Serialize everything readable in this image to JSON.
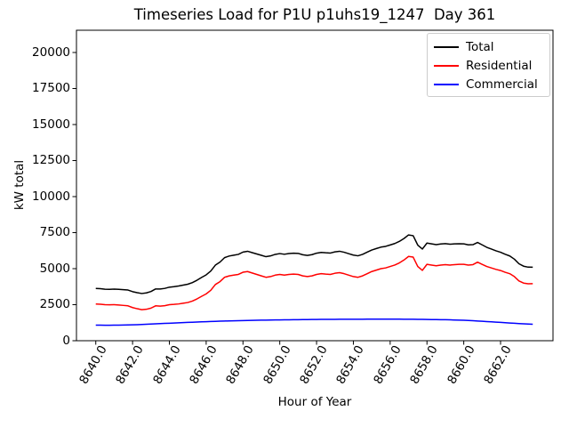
{
  "chart_data": {
    "type": "line",
    "title": "Timeseries Load for P1U p1uhs19_1247  Day 361",
    "xlabel": "Hour of Year",
    "ylabel": "kW total",
    "grid": false,
    "legend_position": "upper right",
    "xlim": [
      8638.95,
      8664.85
    ],
    "ylim": [
      0,
      21543
    ],
    "xticks": {
      "values": [
        8640,
        8642,
        8644,
        8646,
        8648,
        8650,
        8652,
        8654,
        8656,
        8658,
        8660,
        8662
      ],
      "labels": [
        "8640.0",
        "8642.0",
        "8644.0",
        "8646.0",
        "8648.0",
        "8650.0",
        "8652.0",
        "8654.0",
        "8656.0",
        "8658.0",
        "8660.0",
        "8662.0"
      ]
    },
    "yticks": {
      "values": [
        0,
        2500,
        5000,
        7500,
        10000,
        12500,
        15000,
        17500,
        20000
      ],
      "labels": [
        "0",
        "2500",
        "5000",
        "7500",
        "10000",
        "12500",
        "15000",
        "17500",
        "20000"
      ]
    },
    "x": [
      8640.0,
      8640.25,
      8640.5,
      8640.75,
      8641.0,
      8641.25,
      8641.5,
      8641.75,
      8642.0,
      8642.25,
      8642.5,
      8642.75,
      8643.0,
      8643.25,
      8643.5,
      8643.75,
      8644.0,
      8644.25,
      8644.5,
      8644.75,
      8645.0,
      8645.25,
      8645.5,
      8645.75,
      8646.0,
      8646.25,
      8646.5,
      8646.75,
      8647.0,
      8647.25,
      8647.5,
      8647.75,
      8648.0,
      8648.25,
      8648.5,
      8648.75,
      8649.0,
      8649.25,
      8649.5,
      8649.75,
      8650.0,
      8650.25,
      8650.5,
      8650.75,
      8651.0,
      8651.25,
      8651.5,
      8651.75,
      8652.0,
      8652.25,
      8652.5,
      8652.75,
      8653.0,
      8653.25,
      8653.5,
      8653.75,
      8654.0,
      8654.25,
      8654.5,
      8654.75,
      8655.0,
      8655.25,
      8655.5,
      8655.75,
      8656.0,
      8656.25,
      8656.5,
      8656.75,
      8657.0,
      8657.25,
      8657.5,
      8657.75,
      8658.0,
      8658.25,
      8658.5,
      8658.75,
      8659.0,
      8659.25,
      8659.5,
      8659.75,
      8660.0,
      8660.25,
      8660.5,
      8660.75,
      8661.0,
      8661.25,
      8661.5,
      8661.75,
      8662.0,
      8662.25,
      8662.5,
      8662.75,
      8663.0,
      8663.25,
      8663.5,
      8663.75
    ],
    "series": [
      {
        "name": "Total",
        "color": "#000000",
        "values": [
          3630,
          3608,
          3575,
          3565,
          3578,
          3562,
          3538,
          3515,
          3405,
          3335,
          3275,
          3320,
          3415,
          3590,
          3585,
          3630,
          3715,
          3750,
          3795,
          3858,
          3920,
          4033,
          4195,
          4388,
          4570,
          4832,
          5243,
          5454,
          5765,
          5875,
          5934,
          5992,
          6150,
          6207,
          6113,
          6019,
          5925,
          5830,
          5885,
          5990,
          6045,
          5999,
          6052,
          6076,
          6060,
          5964,
          5918,
          5971,
          6075,
          6128,
          6100,
          6083,
          6165,
          6207,
          6138,
          6039,
          5940,
          5891,
          5992,
          6143,
          6294,
          6395,
          6495,
          6545,
          6645,
          6744,
          6893,
          7091,
          7340,
          7288,
          6635,
          6360,
          6775,
          6720,
          6665,
          6710,
          6735,
          6697,
          6718,
          6729,
          6720,
          6653,
          6665,
          6818,
          6650,
          6480,
          6360,
          6240,
          6140,
          6000,
          5880,
          5660,
          5340,
          5172,
          5105,
          5100
        ]
      },
      {
        "name": "Residential",
        "color": "#ff0000",
        "values": [
          2550,
          2530,
          2500,
          2490,
          2500,
          2480,
          2450,
          2420,
          2300,
          2220,
          2150,
          2180,
          2260,
          2420,
          2400,
          2430,
          2500,
          2520,
          2550,
          2600,
          2650,
          2750,
          2900,
          3080,
          3250,
          3500,
          3900,
          4100,
          4400,
          4500,
          4550,
          4600,
          4750,
          4800,
          4700,
          4600,
          4500,
          4400,
          4450,
          4550,
          4600,
          4550,
          4600,
          4620,
          4600,
          4500,
          4450,
          4500,
          4600,
          4650,
          4620,
          4600,
          4680,
          4720,
          4650,
          4550,
          4450,
          4400,
          4500,
          4650,
          4800,
          4900,
          5000,
          5050,
          5150,
          5250,
          5400,
          5600,
          5850,
          5800,
          5150,
          4880,
          5300,
          5250,
          5200,
          5250,
          5280,
          5250,
          5280,
          5300,
          5300,
          5250,
          5280,
          5450,
          5300,
          5150,
          5050,
          4950,
          4870,
          4750,
          4650,
          4450,
          4150,
          4000,
          3950,
          3960
        ]
      },
      {
        "name": "Commercial",
        "color": "#0000ff",
        "values": [
          1080,
          1078,
          1075,
          1075,
          1078,
          1082,
          1088,
          1095,
          1105,
          1115,
          1125,
          1140,
          1155,
          1170,
          1185,
          1200,
          1215,
          1230,
          1245,
          1258,
          1270,
          1283,
          1295,
          1308,
          1320,
          1332,
          1343,
          1354,
          1365,
          1375,
          1384,
          1392,
          1400,
          1407,
          1413,
          1419,
          1425,
          1430,
          1435,
          1440,
          1445,
          1449,
          1452,
          1456,
          1460,
          1464,
          1468,
          1471,
          1475,
          1478,
          1480,
          1483,
          1485,
          1487,
          1488,
          1489,
          1490,
          1491,
          1492,
          1493,
          1494,
          1495,
          1495,
          1495,
          1495,
          1494,
          1493,
          1491,
          1490,
          1488,
          1485,
          1480,
          1475,
          1470,
          1465,
          1460,
          1455,
          1447,
          1438,
          1429,
          1420,
          1403,
          1385,
          1368,
          1350,
          1330,
          1310,
          1290,
          1270,
          1250,
          1230,
          1210,
          1190,
          1172,
          1155,
          1140
        ]
      }
    ]
  }
}
